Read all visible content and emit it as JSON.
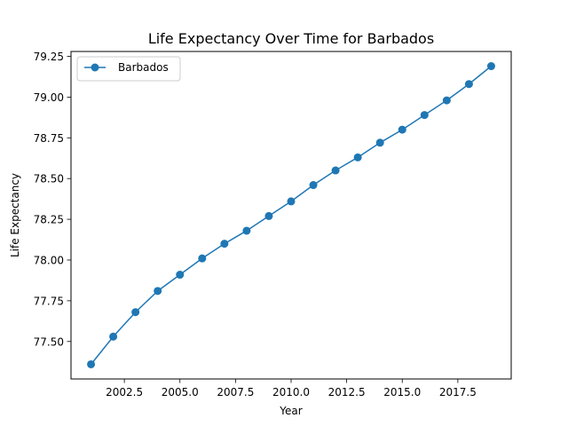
{
  "chart_data": {
    "type": "line",
    "title": "Life Expectancy Over Time for Barbados",
    "xlabel": "Year",
    "ylabel": "Life Expectancy",
    "xlim": [
      2000.1,
      2019.9
    ],
    "ylim": [
      77.27,
      79.28
    ],
    "x_ticks": [
      2002.5,
      2005.0,
      2007.5,
      2010.0,
      2012.5,
      2015.0,
      2017.5
    ],
    "x_tick_labels": [
      "2002.5",
      "2005.0",
      "2007.5",
      "2010.0",
      "2012.5",
      "2015.0",
      "2017.5"
    ],
    "y_ticks": [
      77.5,
      77.75,
      78.0,
      78.25,
      78.5,
      78.75,
      79.0,
      79.25
    ],
    "y_tick_labels": [
      "77.50",
      "77.75",
      "78.00",
      "78.25",
      "78.50",
      "78.75",
      "79.00",
      "79.25"
    ],
    "grid": false,
    "legend_position": "top-left",
    "series": [
      {
        "name": "Barbados",
        "color": "#1f77b4",
        "marker": "circle",
        "x": [
          2001,
          2002,
          2003,
          2004,
          2005,
          2006,
          2007,
          2008,
          2009,
          2010,
          2011,
          2012,
          2013,
          2014,
          2015,
          2016,
          2017,
          2018,
          2019
        ],
        "y": [
          77.36,
          77.53,
          77.68,
          77.81,
          77.91,
          78.01,
          78.1,
          78.18,
          78.27,
          78.36,
          78.46,
          78.55,
          78.63,
          78.72,
          78.8,
          78.89,
          78.98,
          79.08,
          79.19
        ]
      }
    ]
  }
}
